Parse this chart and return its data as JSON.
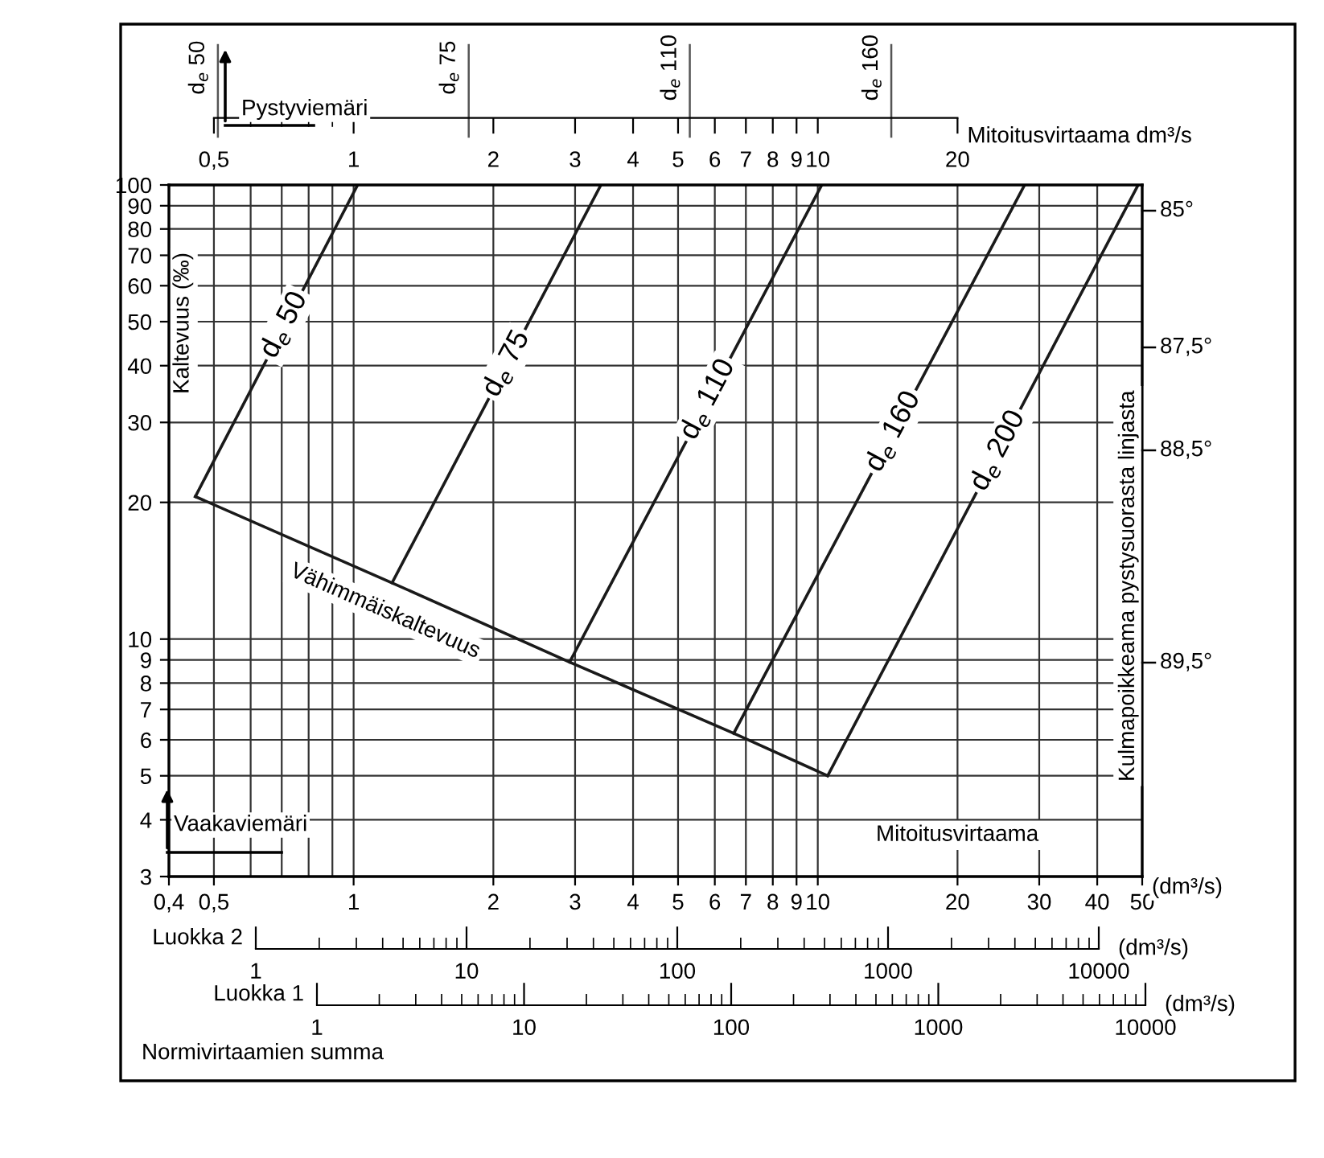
{
  "chart_data": {
    "type": "line",
    "xlabel": "Mitoitusvirtaama",
    "ylabel": "Kaltevuus (‰)",
    "y2label": "Kulmapoikkeama pystysuorasta linjasta",
    "log": "xy",
    "grid": true,
    "marker": "none",
    "line_style": "solid",
    "series": [
      {
        "name": "d$_{e}$ 50",
        "color": "#1a1a1a",
        "x": [
          0.456,
          1.02
        ],
        "values": [
          20.6,
          100
        ]
      },
      {
        "name": "d$_{e}$ 75",
        "color": "#1a1a1a",
        "x": [
          1.21,
          3.41
        ],
        "values": [
          13.3,
          100
        ]
      },
      {
        "name": "d$_{e}$ 110",
        "color": "#1a1a1a",
        "x": [
          2.92,
          10.2
        ],
        "values": [
          8.9,
          100
        ]
      },
      {
        "name": "d$_{e}$ 160",
        "color": "#1a1a1a",
        "x": [
          6.59,
          27.9
        ],
        "values": [
          6.2,
          100
        ]
      },
      {
        "name": "d$_{e}$ 200",
        "color": "#1a1a1a",
        "x": [
          10.5,
          49
        ],
        "values": [
          5,
          100
        ]
      },
      {
        "name": "Vähimmäiskaltevuus",
        "color": "#1a1a1a",
        "x": [
          0.456,
          1.21,
          2.92,
          6.59,
          10.5
        ],
        "values": [
          20.6,
          13.3,
          8.9,
          6.2,
          5
        ]
      }
    ],
    "xlim": [
      0.4,
      50
    ],
    "xticks": [
      {
        "value": 0.4,
        "label": "0,4"
      },
      {
        "value": 0.5,
        "label": "0,5"
      },
      1,
      2,
      3,
      4,
      5,
      6,
      7,
      8,
      9,
      10,
      20,
      30,
      40,
      50
    ],
    "ylim": [
      3,
      100
    ],
    "yticks": [
      3,
      4,
      5,
      6,
      7,
      8,
      9,
      10,
      20,
      30,
      40,
      50,
      60,
      70,
      80,
      90,
      100
    ],
    "ref_lines": [
      {
        "axis": "x",
        "value": 0.51,
        "label": "d$_{e}$ 50"
      },
      {
        "axis": "x",
        "value": 1.77,
        "label": "d$_{e}$ 75"
      },
      {
        "axis": "x",
        "value": 5.3,
        "label": "d$_{e}$ 110"
      },
      {
        "axis": "x",
        "value": 14.4,
        "label": "d$_{e}$ 160"
      }
    ],
    "annotations": [
      "Pystyviemäri",
      "Vaakaviemäri",
      "(dm³/s)",
      "85°",
      "87,5°",
      "88,5°",
      "89,5°",
      "Luokka 2",
      "1",
      "10",
      "100",
      "1000",
      "10000",
      "(dm³/s)",
      "Luokka 1",
      "1",
      "10",
      "100",
      "1000",
      "10000",
      "(dm³/s)",
      "Normivirtaamien summa",
      "Mitoitusvirtaama dm³/s",
      "0,5",
      "1",
      "2",
      "3",
      "4",
      "5",
      "6",
      "7",
      "8",
      "9",
      "10",
      "20"
    ]
  }
}
